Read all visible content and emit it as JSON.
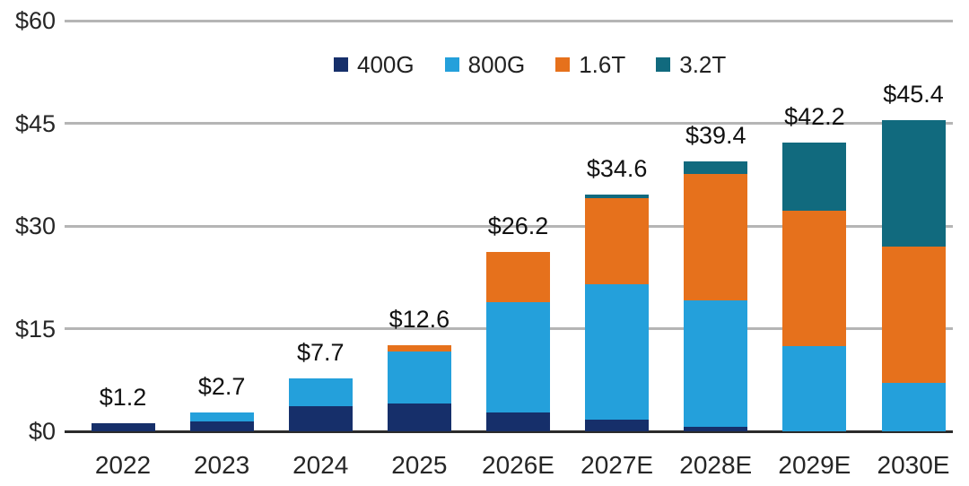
{
  "chart_data": {
    "type": "bar",
    "stacked": true,
    "title": "",
    "xlabel": "",
    "ylabel": "",
    "ylim": [
      0,
      60
    ],
    "grid": true,
    "legend_position": "top",
    "categories": [
      "2022",
      "2023",
      "2024",
      "2025",
      "2026E",
      "2027E",
      "2028E",
      "2029E",
      "2030E"
    ],
    "series": [
      {
        "name": "400G",
        "color": "#162f6a",
        "values": [
          1.2,
          1.4,
          3.7,
          4.0,
          2.8,
          1.7,
          0.7,
          0,
          0
        ]
      },
      {
        "name": "800G",
        "color": "#24a0db",
        "values": [
          0,
          1.3,
          4.0,
          7.6,
          16.1,
          19.8,
          18.4,
          12.4,
          7.1
        ]
      },
      {
        "name": "1.6T",
        "color": "#e6711c",
        "values": [
          0,
          0,
          0,
          1.0,
          7.3,
          12.6,
          18.5,
          19.8,
          19.9
        ]
      },
      {
        "name": "3.2T",
        "color": "#116a7e",
        "values": [
          0,
          0,
          0,
          0,
          0,
          0.5,
          1.8,
          10.0,
          18.4
        ]
      }
    ],
    "totals": [
      "$1.2",
      "$2.7",
      "$7.7",
      "$12.6",
      "$26.2",
      "$34.6",
      "$39.4",
      "$42.2",
      "$45.4"
    ],
    "y_ticks": [
      {
        "value": 0,
        "label": "$0"
      },
      {
        "value": 15,
        "label": "$15"
      },
      {
        "value": 30,
        "label": "$30"
      },
      {
        "value": 45,
        "label": "$45"
      },
      {
        "value": 60,
        "label": "$60"
      }
    ],
    "colors": {
      "gridline": "#b5b5b5",
      "axis_line": "#2b2b2b",
      "label_text": "#111111",
      "tick_text": "#262626"
    }
  }
}
